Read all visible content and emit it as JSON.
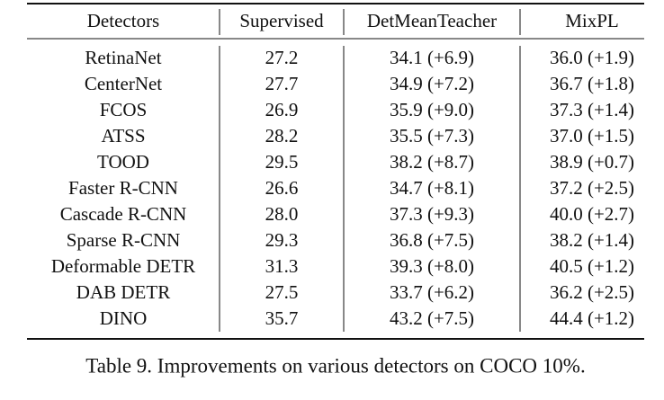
{
  "table": {
    "columns": [
      "Detectors",
      "Supervised",
      "DetMeanTeacher",
      "MixPL"
    ],
    "rows": [
      [
        "RetinaNet",
        "27.2",
        "34.1 (+6.9)",
        "36.0 (+1.9)"
      ],
      [
        "CenterNet",
        "27.7",
        "34.9 (+7.2)",
        "36.7 (+1.8)"
      ],
      [
        "FCOS",
        "26.9",
        "35.9 (+9.0)",
        "37.3 (+1.4)"
      ],
      [
        "ATSS",
        "28.2",
        "35.5 (+7.3)",
        "37.0 (+1.5)"
      ],
      [
        "TOOD",
        "29.5",
        "38.2 (+8.7)",
        "38.9 (+0.7)"
      ],
      [
        "Faster R-CNN",
        "26.6",
        "34.7 (+8.1)",
        "37.2 (+2.5)"
      ],
      [
        "Cascade R-CNN",
        "28.0",
        "37.3 (+9.3)",
        "40.0 (+2.7)"
      ],
      [
        "Sparse R-CNN",
        "29.3",
        "36.8 (+7.5)",
        "38.2 (+1.4)"
      ],
      [
        "Deformable DETR",
        "31.3",
        "39.3 (+8.0)",
        "40.5 (+1.2)"
      ],
      [
        "DAB DETR",
        "27.5",
        "33.7 (+6.2)",
        "36.2 (+2.5)"
      ],
      [
        "DINO",
        "35.7",
        "43.2 (+7.5)",
        "44.4 (+1.2)"
      ]
    ],
    "caption": "Table 9. Improvements on various detectors on COCO 10%."
  }
}
